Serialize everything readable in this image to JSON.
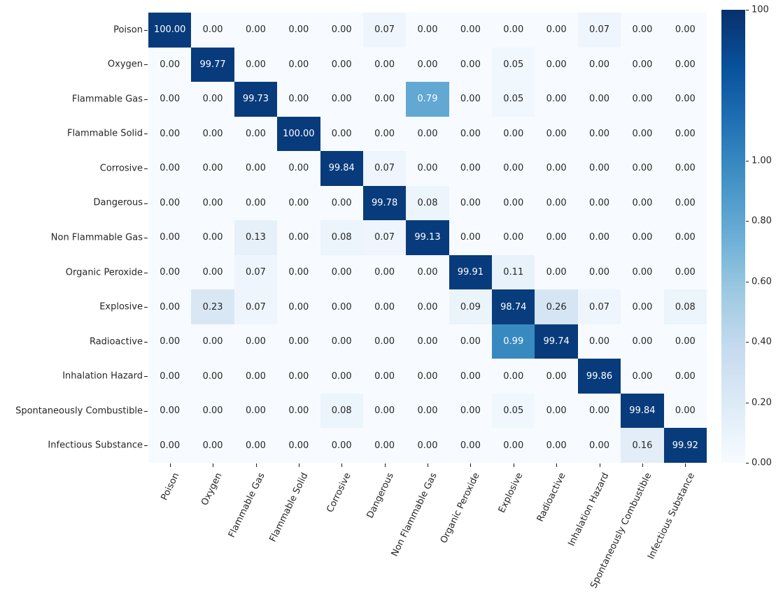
{
  "figure": {
    "background": "#ffffff",
    "text_color": "#262626"
  },
  "chart_data": {
    "type": "heatmap",
    "title": "",
    "xlabel": "",
    "ylabel": "",
    "value_format_decimals": 2,
    "categories": [
      "Poison",
      "Oxygen",
      "Flammable Gas",
      "Flammable Solid",
      "Corrosive",
      "Dangerous",
      "Non Flammable Gas",
      "Organic Peroxide",
      "Explosive",
      "Radioactive",
      "Inhalation Hazard",
      "Spontaneously Combustible",
      "Infectious Substance"
    ],
    "matrix": [
      [
        100.0,
        0.0,
        0.0,
        0.0,
        0.0,
        0.07,
        0.0,
        0.0,
        0.0,
        0.0,
        0.07,
        0.0,
        0.0
      ],
      [
        0.0,
        99.77,
        0.0,
        0.0,
        0.0,
        0.0,
        0.0,
        0.0,
        0.05,
        0.0,
        0.0,
        0.0,
        0.0
      ],
      [
        0.0,
        0.0,
        99.73,
        0.0,
        0.0,
        0.0,
        0.79,
        0.0,
        0.05,
        0.0,
        0.0,
        0.0,
        0.0
      ],
      [
        0.0,
        0.0,
        0.0,
        100.0,
        0.0,
        0.0,
        0.0,
        0.0,
        0.0,
        0.0,
        0.0,
        0.0,
        0.0
      ],
      [
        0.0,
        0.0,
        0.0,
        0.0,
        99.84,
        0.07,
        0.0,
        0.0,
        0.0,
        0.0,
        0.0,
        0.0,
        0.0
      ],
      [
        0.0,
        0.0,
        0.0,
        0.0,
        0.0,
        99.78,
        0.08,
        0.0,
        0.0,
        0.0,
        0.0,
        0.0,
        0.0
      ],
      [
        0.0,
        0.0,
        0.13,
        0.0,
        0.08,
        0.07,
        99.13,
        0.0,
        0.0,
        0.0,
        0.0,
        0.0,
        0.0
      ],
      [
        0.0,
        0.0,
        0.07,
        0.0,
        0.0,
        0.0,
        0.0,
        99.91,
        0.11,
        0.0,
        0.0,
        0.0,
        0.0
      ],
      [
        0.0,
        0.23,
        0.07,
        0.0,
        0.0,
        0.0,
        0.0,
        0.09,
        98.74,
        0.26,
        0.07,
        0.0,
        0.08
      ],
      [
        0.0,
        0.0,
        0.0,
        0.0,
        0.0,
        0.0,
        0.0,
        0.0,
        0.99,
        99.74,
        0.0,
        0.0,
        0.0
      ],
      [
        0.0,
        0.0,
        0.0,
        0.0,
        0.0,
        0.0,
        0.0,
        0.0,
        0.0,
        0.0,
        99.86,
        0.0,
        0.0
      ],
      [
        0.0,
        0.0,
        0.0,
        0.0,
        0.08,
        0.0,
        0.0,
        0.0,
        0.05,
        0.0,
        0.0,
        99.84,
        0.0
      ],
      [
        0.0,
        0.0,
        0.0,
        0.0,
        0.0,
        0.0,
        0.0,
        0.0,
        0.0,
        0.0,
        0.0,
        0.16,
        99.92
      ]
    ],
    "colormap": "Blues",
    "colormap_stops": [
      "#f7fbff",
      "#deebf7",
      "#c6dbef",
      "#9ecae1",
      "#6baed6",
      "#4292c6",
      "#2171b5",
      "#08519c",
      "#08306b"
    ],
    "annotation_dark_text": "#262626",
    "annotation_light_text": "#ffffff",
    "norm": {
      "linear_max": 1.0,
      "vmax": 100.0,
      "linear_fraction": 0.6667,
      "upper_span": 0.2933
    },
    "colorbar": {
      "ticks": [
        {
          "label": "100",
          "pos": 0
        },
        {
          "label": "1.00",
          "pos": 33.33
        },
        {
          "label": "0.80",
          "pos": 46.67
        },
        {
          "label": "0.60",
          "pos": 60.0
        },
        {
          "label": "0.40",
          "pos": 73.33
        },
        {
          "label": "0.20",
          "pos": 86.67
        },
        {
          "label": "0.00",
          "pos": 100
        }
      ]
    }
  }
}
